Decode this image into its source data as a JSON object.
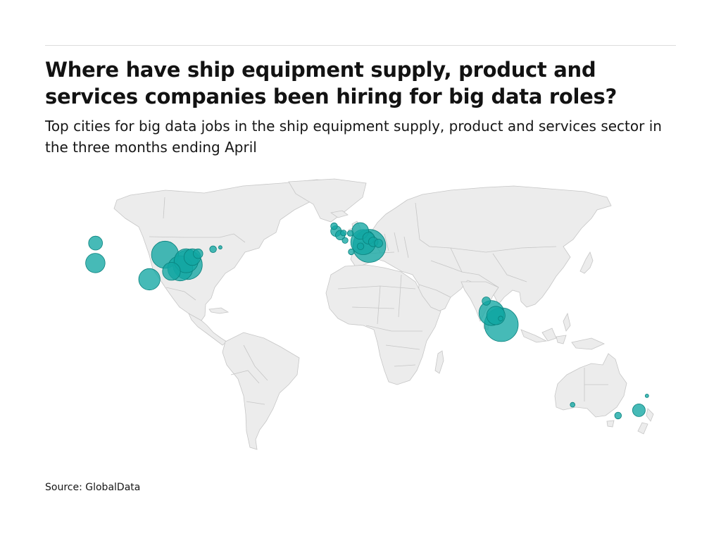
{
  "header": {
    "title": "Where have ship equipment supply, product and services companies been hiring for big data roles?",
    "subtitle": "Top cities for big data jobs in the ship equipment supply, product and services sector in the three months ending April"
  },
  "footer": {
    "source": "Source: GlobalData"
  },
  "map": {
    "projection": "equirectangular",
    "lon_range": [
      -170,
      190
    ],
    "lat_range": [
      -58,
      84
    ],
    "land_color": "#ececec",
    "border_color": "#c6c6c6",
    "bubble_color": "#12a7a3",
    "bubble_stroke": "#08807c",
    "bubble_opacity": 0.78
  },
  "chart_data": {
    "type": "bubble-map",
    "points": [
      {
        "lon": -122.3,
        "lat": 47.6,
        "value": 17
      },
      {
        "lon": -122.4,
        "lat": 37.8,
        "value": 33
      },
      {
        "lon": -95.4,
        "lat": 29.8,
        "value": 40
      },
      {
        "lon": -87.6,
        "lat": 41.9,
        "value": 65
      },
      {
        "lon": -84.4,
        "lat": 33.7,
        "value": 28
      },
      {
        "lon": -80.0,
        "lat": 35.2,
        "value": 55
      },
      {
        "lon": -77.0,
        "lat": 38.9,
        "value": 50
      },
      {
        "lon": -76.3,
        "lat": 36.9,
        "value": 75
      },
      {
        "lon": -74.0,
        "lat": 40.7,
        "value": 24
      },
      {
        "lon": -71.1,
        "lat": 42.4,
        "value": 8
      },
      {
        "lon": -63.6,
        "lat": 44.6,
        "value": 4
      },
      {
        "lon": -60.0,
        "lat": 45.5,
        "value": 1
      },
      {
        "lon": -3.2,
        "lat": 55.9,
        "value": 4
      },
      {
        "lon": -2.2,
        "lat": 53.5,
        "value": 10
      },
      {
        "lon": -0.1,
        "lat": 51.5,
        "value": 8
      },
      {
        "lon": 1.5,
        "lat": 52.6,
        "value": 3
      },
      {
        "lon": 2.3,
        "lat": 48.9,
        "value": 3
      },
      {
        "lon": 4.9,
        "lat": 52.4,
        "value": 3
      },
      {
        "lon": 5.4,
        "lat": 43.3,
        "value": 3
      },
      {
        "lon": 9.9,
        "lat": 53.6,
        "value": 24
      },
      {
        "lon": 10.0,
        "lat": 46.0,
        "value": 4
      },
      {
        "lon": 11.4,
        "lat": 48.1,
        "value": 55
      },
      {
        "lon": 14.4,
        "lat": 46.2,
        "value": 95
      },
      {
        "lon": 14.0,
        "lat": 50.0,
        "value": 12
      },
      {
        "lon": 16.4,
        "lat": 48.2,
        "value": 8
      },
      {
        "lon": 19.0,
        "lat": 47.5,
        "value": 6
      },
      {
        "lon": 72.8,
        "lat": 19.1,
        "value": 6
      },
      {
        "lon": 75.4,
        "lat": 13.2,
        "value": 55
      },
      {
        "lon": 77.6,
        "lat": 12.0,
        "value": 30
      },
      {
        "lon": 80.3,
        "lat": 7.5,
        "value": 100
      },
      {
        "lon": 80.0,
        "lat": 10.5,
        "value": 2
      },
      {
        "lon": 115.9,
        "lat": -31.9,
        "value": 2
      },
      {
        "lon": 138.6,
        "lat": -37.2,
        "value": 4
      },
      {
        "lon": 149.0,
        "lat": -34.6,
        "value": 14
      },
      {
        "lon": 153.0,
        "lat": -27.5,
        "value": 1
      }
    ]
  }
}
